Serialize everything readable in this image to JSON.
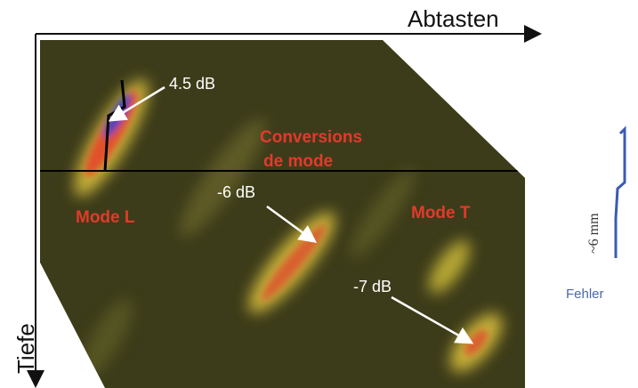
{
  "axes": {
    "x_label": "Abtasten",
    "y_label": "Tiefe"
  },
  "annotations": {
    "peak_l": "4.5 dB",
    "conversions": [
      "Conversions",
      "de mode"
    ],
    "peak_conv": "-6 dB",
    "mode_l": "Mode L",
    "mode_t": "Mode T",
    "peak_t": "-7 dB"
  },
  "defect": {
    "size": "~6 mm",
    "label": "Fehler"
  }
}
